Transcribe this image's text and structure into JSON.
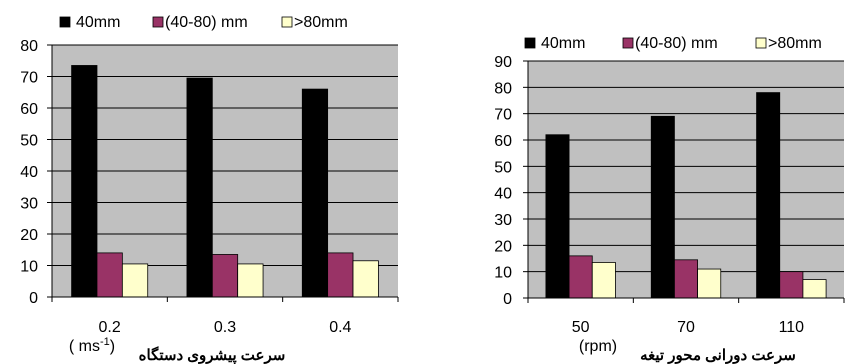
{
  "chart_data": [
    {
      "type": "bar",
      "categories": [
        "0.2",
        "0.3",
        "0.4"
      ],
      "series": [
        {
          "name": "40mm",
          "values": [
            73.5,
            69.5,
            66
          ]
        },
        {
          "name": "(40-80) mm",
          "values": [
            14,
            13.5,
            14
          ]
        },
        {
          "name": ">80mm",
          "values": [
            10.5,
            10.5,
            11.5
          ]
        }
      ],
      "xlabel": "سرعت پیشروی دستگاه",
      "xunit": "( ms",
      "xunit_sup": "-1",
      "xunit_close": ")",
      "ylim": [
        0,
        80
      ],
      "yticks": [
        0,
        10,
        20,
        30,
        40,
        50,
        60,
        70,
        80
      ],
      "grid": true,
      "legend": "top"
    },
    {
      "type": "bar",
      "categories": [
        "50",
        "70",
        "110"
      ],
      "series": [
        {
          "name": "40mm",
          "values": [
            62,
            69,
            78
          ]
        },
        {
          "name": "(40-80) mm",
          "values": [
            16,
            14.5,
            10
          ]
        },
        {
          "name": ">80mm",
          "values": [
            13.5,
            11,
            7
          ]
        }
      ],
      "xlabel": "سرعت دورانی محور تیغه",
      "xunit": "(rpm)",
      "ylim": [
        0,
        90
      ],
      "yticks": [
        0,
        10,
        20,
        30,
        40,
        50,
        60,
        70,
        80,
        90
      ],
      "grid": true,
      "legend": "top"
    }
  ],
  "colors": {
    "series": [
      "#000000",
      "#993366",
      "#ffffcc"
    ],
    "plot_area": "#c0c0c0"
  }
}
